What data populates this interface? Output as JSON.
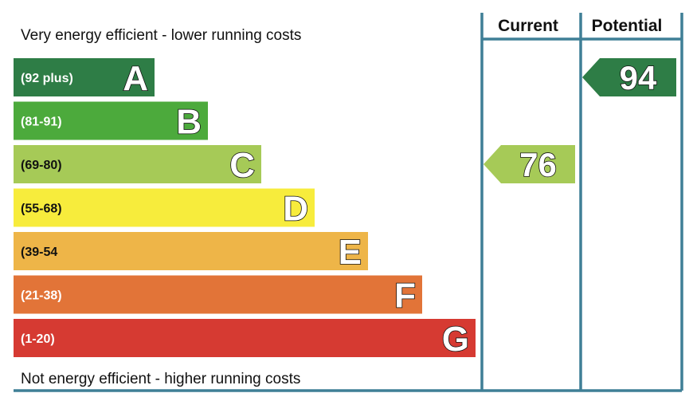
{
  "chart_data": {
    "type": "bar",
    "top_caption": "Very energy efficient - lower running costs",
    "bottom_caption": "Not energy efficient - higher running costs",
    "columns": {
      "current": "Current",
      "potential": "Potential"
    },
    "bands": [
      {
        "letter": "A",
        "range": "(92 plus)",
        "color": "#2e7d46"
      },
      {
        "letter": "B",
        "range": "(81-91)",
        "color": "#4caa3c"
      },
      {
        "letter": "C",
        "range": "(69-80)",
        "color": "#a6ca57"
      },
      {
        "letter": "D",
        "range": "(55-68)",
        "color": "#f7ec3c"
      },
      {
        "letter": "E",
        "range": "(39-54",
        "color": "#eeb548"
      },
      {
        "letter": "F",
        "range": "(21-38)",
        "color": "#e27438"
      },
      {
        "letter": "G",
        "range": "(1-20)",
        "color": "#d63a32"
      }
    ],
    "current": {
      "value": 76,
      "band": "C",
      "color": "#a6ca57"
    },
    "potential": {
      "value": 94,
      "band": "A",
      "color": "#2e7d46"
    },
    "frame_color": "#3f7f96"
  }
}
